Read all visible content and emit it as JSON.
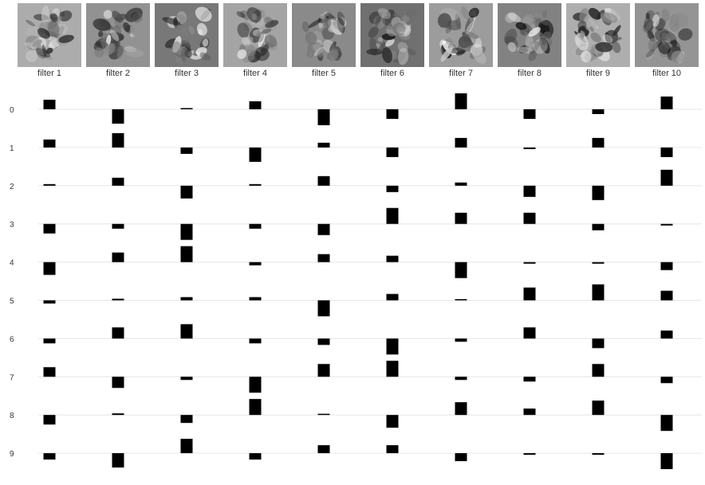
{
  "chart_data": {
    "type": "bar",
    "filters": [
      "filter 1",
      "filter 2",
      "filter 3",
      "filter 4",
      "filter 5",
      "filter 6",
      "filter 7",
      "filter 8",
      "filter 9",
      "filter 10"
    ],
    "categories": [
      "0",
      "1",
      "2",
      "3",
      "4",
      "5",
      "6",
      "7",
      "8",
      "9"
    ],
    "weights": [
      [
        0.6,
        -0.9,
        0.0,
        0.5,
        -1.0,
        -0.6,
        1.0,
        -0.6,
        -0.3,
        0.8
      ],
      [
        0.5,
        0.9,
        -0.4,
        -0.9,
        0.3,
        -0.6,
        0.6,
        -0.1,
        0.6,
        -0.6
      ],
      [
        0.1,
        0.5,
        -0.8,
        0.1,
        0.6,
        -0.4,
        0.2,
        -0.7,
        -0.9,
        1.0
      ],
      [
        -0.6,
        -0.3,
        -1.0,
        -0.3,
        -0.7,
        1.0,
        0.7,
        0.7,
        -0.4,
        -0.1
      ],
      [
        -0.8,
        0.6,
        1.0,
        -0.2,
        0.5,
        0.4,
        -1.0,
        -0.1,
        -0.1,
        -0.5
      ],
      [
        -0.2,
        0.1,
        0.2,
        0.2,
        -1.0,
        0.4,
        0.0,
        0.8,
        1.0,
        0.6
      ],
      [
        -0.3,
        0.7,
        0.9,
        -0.3,
        -0.4,
        -1.0,
        -0.2,
        0.7,
        -0.6,
        0.5
      ],
      [
        0.6,
        -0.7,
        -0.2,
        -1.0,
        0.8,
        1.0,
        -0.2,
        -0.3,
        0.8,
        -0.4
      ],
      [
        -0.6,
        0.1,
        -0.5,
        1.0,
        0.0,
        -0.8,
        0.8,
        0.4,
        0.9,
        -1.0
      ],
      [
        -0.4,
        -0.9,
        0.9,
        -0.4,
        0.5,
        0.5,
        -0.5,
        -0.1,
        -0.1,
        -1.0
      ]
    ]
  }
}
